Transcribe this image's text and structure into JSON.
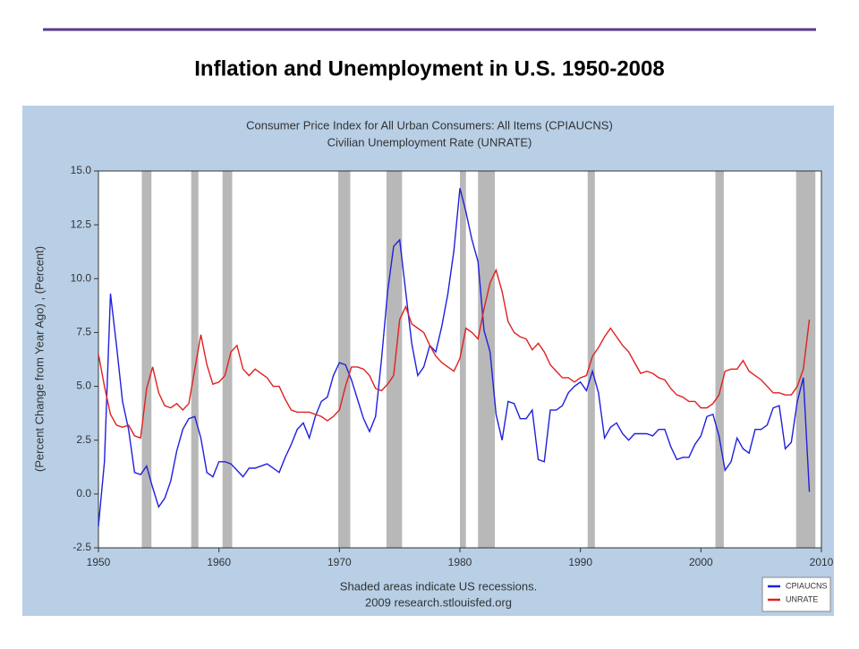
{
  "title": "Inflation and Unemployment in U.S. 1950-2008",
  "chart_data": {
    "type": "line",
    "chart_title": [
      "Consumer Price Index for All Urban Consumers: All Items (CPIAUCNS)",
      "Civilian Unemployment Rate (UNRATE)"
    ],
    "ylabel": "(Percent Change from Year Ago) , (Percent)",
    "note": "Shaded areas indicate US recessions.",
    "source": "2009 research.stlouisfed.org",
    "xlim": [
      1950,
      2010
    ],
    "xticks": [
      1950,
      1960,
      1970,
      1980,
      1990,
      2000,
      2010
    ],
    "ylim": [
      -2.5,
      15
    ],
    "yticks": [
      -2.5,
      {
        "value": 0,
        "label": "0.0"
      },
      2.5,
      {
        "value": 5,
        "label": "5.0"
      },
      7.5,
      {
        "value": 10,
        "label": "10.0"
      },
      12.5,
      {
        "value": 15,
        "label": "15.0"
      }
    ],
    "grid": false,
    "legend": "lower right",
    "recessions": [
      [
        1953.6,
        1954.4
      ],
      [
        1957.7,
        1958.3
      ],
      [
        1960.3,
        1961.1
      ],
      [
        1969.9,
        1970.9
      ],
      [
        1973.9,
        1975.2
      ],
      [
        1980.0,
        1980.5
      ],
      [
        1981.5,
        1982.9
      ],
      [
        1990.6,
        1991.2
      ],
      [
        2001.2,
        2001.9
      ],
      [
        2007.9,
        2009.5
      ]
    ],
    "recession_color": "#b8b8b8",
    "x": [
      1950,
      1950.5,
      1951,
      1951.5,
      1952,
      1952.5,
      1953,
      1953.5,
      1954,
      1954.5,
      1955,
      1955.5,
      1956,
      1956.5,
      1957,
      1957.5,
      1958,
      1958.5,
      1959,
      1959.5,
      1960,
      1960.5,
      1961,
      1961.5,
      1962,
      1962.5,
      1963,
      1963.5,
      1964,
      1964.5,
      1965,
      1965.5,
      1966,
      1966.5,
      1967,
      1967.5,
      1968,
      1968.5,
      1969,
      1969.5,
      1970,
      1970.5,
      1971,
      1971.5,
      1972,
      1972.5,
      1973,
      1973.5,
      1974,
      1974.5,
      1975,
      1975.5,
      1976,
      1976.5,
      1977,
      1977.5,
      1978,
      1978.5,
      1979,
      1979.5,
      1980,
      1980.5,
      1981,
      1981.5,
      1982,
      1982.5,
      1983,
      1983.5,
      1984,
      1984.5,
      1985,
      1985.5,
      1986,
      1986.5,
      1987,
      1987.5,
      1988,
      1988.5,
      1989,
      1989.5,
      1990,
      1990.5,
      1991,
      1991.5,
      1992,
      1992.5,
      1993,
      1993.5,
      1994,
      1994.5,
      1995,
      1995.5,
      1996,
      1996.5,
      1997,
      1997.5,
      1998,
      1998.5,
      1999,
      1999.5,
      2000,
      2000.5,
      2001,
      2001.5,
      2002,
      2002.5,
      2003,
      2003.5,
      2004,
      2004.5,
      2005,
      2005.5,
      2006,
      2006.5,
      2007,
      2007.5,
      2008,
      2008.5,
      2009
    ],
    "series": [
      {
        "name": "CPIAUCNS",
        "color": "#1f1fe0",
        "values": [
          -1.5,
          1.5,
          9.3,
          6.9,
          4.3,
          3.0,
          1.0,
          0.9,
          1.3,
          0.3,
          -0.6,
          -0.2,
          0.6,
          2.0,
          3.0,
          3.5,
          3.6,
          2.6,
          1.0,
          0.8,
          1.5,
          1.5,
          1.4,
          1.1,
          0.8,
          1.2,
          1.2,
          1.3,
          1.4,
          1.2,
          1.0,
          1.7,
          2.3,
          3.0,
          3.3,
          2.6,
          3.6,
          4.3,
          4.5,
          5.5,
          6.1,
          6.0,
          5.3,
          4.4,
          3.5,
          2.9,
          3.6,
          6.3,
          9.4,
          11.5,
          11.8,
          9.4,
          7.0,
          5.5,
          5.9,
          6.9,
          6.6,
          7.8,
          9.3,
          11.3,
          14.2,
          13.1,
          11.8,
          10.8,
          7.6,
          6.6,
          3.7,
          2.5,
          4.3,
          4.2,
          3.5,
          3.5,
          3.9,
          1.6,
          1.5,
          3.9,
          3.9,
          4.1,
          4.7,
          5.0,
          5.2,
          4.8,
          5.7,
          4.7,
          2.6,
          3.1,
          3.3,
          2.8,
          2.5,
          2.8,
          2.8,
          2.8,
          2.7,
          3.0,
          3.0,
          2.2,
          1.6,
          1.7,
          1.7,
          2.3,
          2.7,
          3.6,
          3.7,
          2.7,
          1.1,
          1.5,
          2.6,
          2.1,
          1.9,
          3.0,
          3.0,
          3.2,
          4.0,
          4.1,
          2.1,
          2.4,
          4.3,
          5.4,
          0.1
        ]
      },
      {
        "name": "UNRATE",
        "color": "#e02020",
        "values": [
          6.5,
          5.0,
          3.7,
          3.2,
          3.1,
          3.2,
          2.7,
          2.6,
          4.9,
          5.9,
          4.7,
          4.1,
          4.0,
          4.2,
          3.9,
          4.2,
          5.8,
          7.4,
          6.0,
          5.1,
          5.2,
          5.5,
          6.6,
          6.9,
          5.8,
          5.5,
          5.8,
          5.6,
          5.4,
          5.0,
          5.0,
          4.4,
          3.9,
          3.8,
          3.8,
          3.8,
          3.7,
          3.6,
          3.4,
          3.6,
          3.9,
          5.0,
          5.9,
          5.9,
          5.8,
          5.5,
          4.9,
          4.8,
          5.1,
          5.5,
          8.1,
          8.7,
          7.9,
          7.7,
          7.5,
          6.9,
          6.4,
          6.1,
          5.9,
          5.7,
          6.3,
          7.7,
          7.5,
          7.2,
          8.6,
          9.8,
          10.4,
          9.4,
          8.0,
          7.5,
          7.3,
          7.2,
          6.7,
          7.0,
          6.6,
          6.0,
          5.7,
          5.4,
          5.4,
          5.2,
          5.4,
          5.5,
          6.4,
          6.8,
          7.3,
          7.7,
          7.3,
          6.9,
          6.6,
          6.1,
          5.6,
          5.7,
          5.6,
          5.4,
          5.3,
          4.9,
          4.6,
          4.5,
          4.3,
          4.3,
          4.0,
          4.0,
          4.2,
          4.6,
          5.7,
          5.8,
          5.8,
          6.2,
          5.7,
          5.5,
          5.3,
          5.0,
          4.7,
          4.7,
          4.6,
          4.6,
          5.0,
          5.8,
          8.1
        ]
      }
    ]
  }
}
